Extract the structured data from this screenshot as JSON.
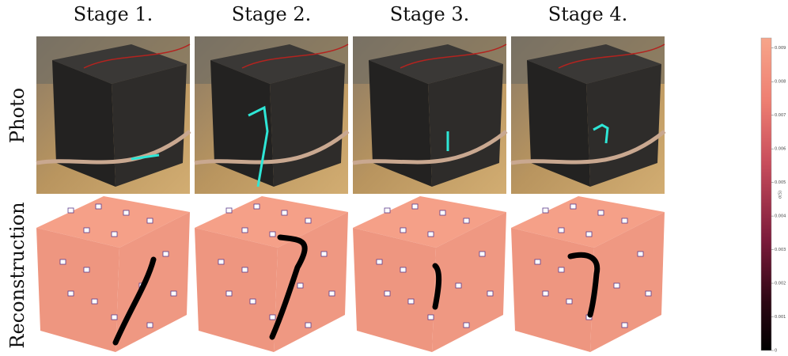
{
  "columns": [
    "Stage 1.",
    "Stage 2.",
    "Stage 3.",
    "Stage 4."
  ],
  "rows": [
    "Photo",
    "Reconstruction"
  ],
  "colorbar": {
    "label": "σ(S)",
    "lim": [
      0,
      0.0093
    ],
    "ticks": [
      0,
      0.001,
      0.002,
      0.003,
      0.004,
      0.005,
      0.006,
      0.007,
      0.008,
      0.009
    ]
  }
}
